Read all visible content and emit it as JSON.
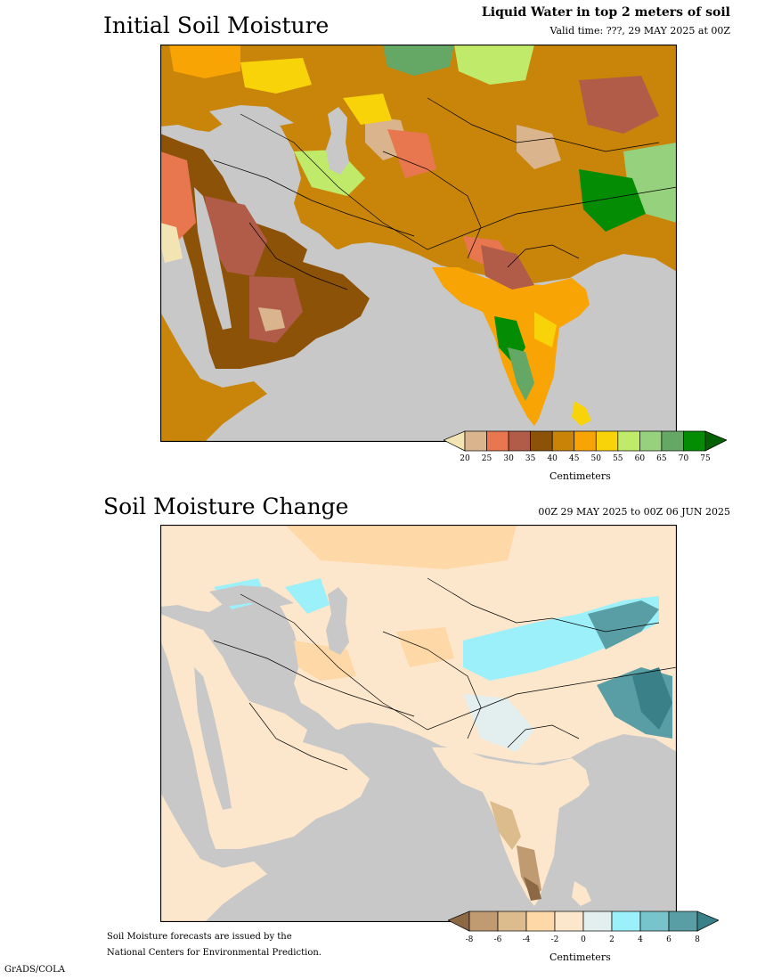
{
  "top_panel": {
    "title": "Initial Soil Moisture",
    "subtitle": "Liquid Water in top 2 meters of soil",
    "valid_time": "Valid time: ???, 29 MAY 2025 at 00Z",
    "colorbar": {
      "colors": [
        "#f2e5b3",
        "#d9b48c",
        "#e8774f",
        "#b05c48",
        "#8c5207",
        "#c98306",
        "#f8a404",
        "#f9d30a",
        "#c0ea6a",
        "#96d27d",
        "#65a765",
        "#048c04",
        "#046204"
      ],
      "ticks": [
        "20",
        "25",
        "30",
        "35",
        "40",
        "45",
        "50",
        "55",
        "60",
        "65",
        "70",
        "75"
      ],
      "units": "Centimeters"
    }
  },
  "bottom_panel": {
    "title": "Soil Moisture Change",
    "period": "00Z 29 MAY 2025 to 00Z 06 JUN 2025",
    "colorbar": {
      "colors": [
        "#8c6844",
        "#c09a70",
        "#dcbb8c",
        "#fed8a6",
        "#fde7cc",
        "#e2efee",
        "#9cf0fa",
        "#78c4cc",
        "#589ea4",
        "#3a8088"
      ],
      "ticks": [
        "-8",
        "-6",
        "-4",
        "-2",
        "0",
        "2",
        "4",
        "6",
        "8"
      ],
      "units": "Centimeters"
    }
  },
  "footer": {
    "line1": "Soil Moisture forecasts are issued by the",
    "line2": "National Centers for Environmental Prediction.",
    "credit": "GrADS/COLA"
  }
}
